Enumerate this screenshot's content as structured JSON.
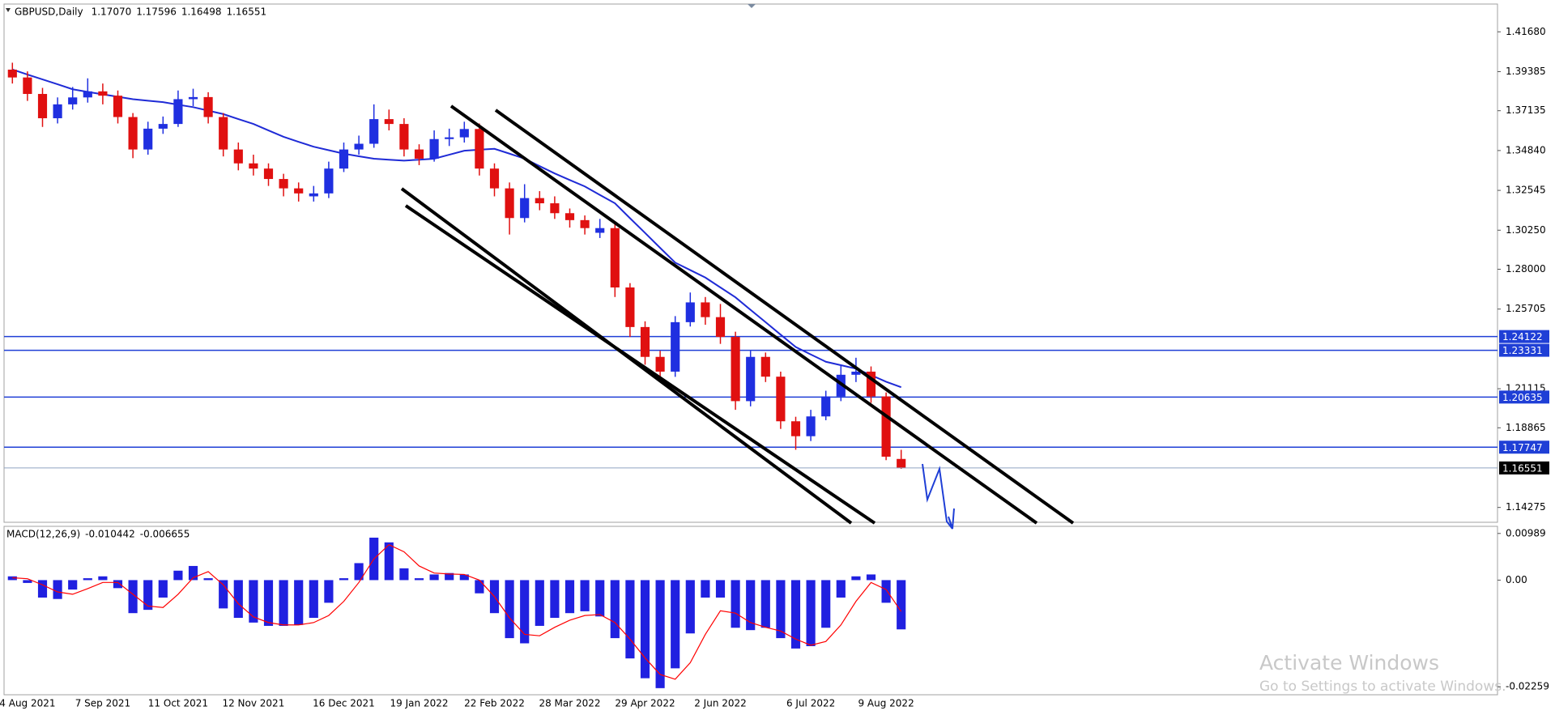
{
  "chart_data": [
    {
      "type": "candlestick",
      "title": "GBPUSD,Daily",
      "ohlc_labels": [
        "1.17070",
        "1.17596",
        "1.16498",
        "1.16551"
      ],
      "categories": [
        null,
        "4 Aug 2021",
        null,
        null,
        null,
        null,
        "7 Sep 2021",
        null,
        null,
        null,
        null,
        "11 Oct 2021",
        null,
        null,
        null,
        null,
        "12 Nov 2021",
        null,
        null,
        null,
        null,
        null,
        "16 Dec 2021",
        null,
        null,
        null,
        null,
        "19 Jan 2022",
        null,
        null,
        null,
        null,
        "22 Feb 2022",
        null,
        null,
        null,
        null,
        "28 Mar 2022",
        null,
        null,
        null,
        null,
        "29 Apr 2022",
        null,
        null,
        null,
        null,
        "2 Jun 2022",
        null,
        null,
        null,
        null,
        null,
        "6 Jul 2022",
        null,
        null,
        null,
        null,
        "9 Aug 2022",
        null
      ],
      "open": [
        1.395,
        1.3905,
        1.381,
        1.367,
        1.375,
        1.379,
        1.3825,
        1.38,
        1.3677,
        1.349,
        1.361,
        1.3637,
        1.378,
        1.3792,
        1.3677,
        1.349,
        1.341,
        1.338,
        1.332,
        1.3266,
        1.322,
        1.3237,
        1.338,
        1.349,
        1.3523,
        1.3665,
        1.3637,
        1.349,
        1.3437,
        1.355,
        1.356,
        1.3608,
        1.338,
        1.3266,
        1.3095,
        1.321,
        1.318,
        1.3123,
        1.3083,
        1.301,
        1.3037,
        1.2695,
        1.2467,
        1.2295,
        1.221,
        1.2495,
        1.2609,
        1.2524,
        1.241,
        1.204,
        1.2295,
        1.2181,
        1.1924,
        1.1838,
        1.1952,
        1.2067,
        1.2192,
        1.221,
        1.2067,
        1.1707
      ],
      "high": [
        1.399,
        1.394,
        1.3845,
        1.379,
        1.385,
        1.39,
        1.387,
        1.383,
        1.37,
        1.365,
        1.368,
        1.383,
        1.384,
        1.382,
        1.37,
        1.353,
        1.346,
        1.341,
        1.335,
        1.33,
        1.328,
        1.342,
        1.353,
        1.357,
        1.375,
        1.372,
        1.367,
        1.352,
        1.36,
        1.361,
        1.365,
        1.364,
        1.341,
        1.33,
        1.329,
        1.325,
        1.322,
        1.315,
        1.311,
        1.309,
        1.307,
        1.272,
        1.25,
        1.233,
        1.253,
        1.2666,
        1.264,
        1.26,
        1.244,
        1.233,
        1.232,
        1.221,
        1.195,
        1.199,
        1.21,
        1.225,
        1.229,
        1.224,
        1.209,
        1.17596
      ],
      "low": [
        1.387,
        1.377,
        1.362,
        1.364,
        1.372,
        1.376,
        1.375,
        1.364,
        1.344,
        1.346,
        1.358,
        1.362,
        1.374,
        1.364,
        1.345,
        1.337,
        1.334,
        1.328,
        1.322,
        1.319,
        1.319,
        1.321,
        1.336,
        1.346,
        1.35,
        1.36,
        1.345,
        1.34,
        1.342,
        1.351,
        1.353,
        1.334,
        1.322,
        1.3,
        1.307,
        1.314,
        1.309,
        1.304,
        1.3,
        1.298,
        1.264,
        1.241,
        1.225,
        1.2155,
        1.218,
        1.247,
        1.248,
        1.237,
        1.199,
        1.201,
        1.215,
        1.188,
        1.176,
        1.181,
        1.193,
        1.204,
        1.215,
        1.203,
        1.17,
        1.16498
      ],
      "close": [
        1.3905,
        1.381,
        1.367,
        1.375,
        1.379,
        1.3825,
        1.38,
        1.3677,
        1.349,
        1.361,
        1.3637,
        1.378,
        1.3792,
        1.3677,
        1.349,
        1.341,
        1.338,
        1.332,
        1.3266,
        1.3237,
        1.3237,
        1.338,
        1.349,
        1.3523,
        1.3665,
        1.3637,
        1.349,
        1.3437,
        1.355,
        1.356,
        1.3608,
        1.338,
        1.3266,
        1.3095,
        1.321,
        1.318,
        1.3123,
        1.3083,
        1.3037,
        1.3037,
        1.2695,
        1.2467,
        1.2295,
        1.221,
        1.2495,
        1.2609,
        1.2524,
        1.241,
        1.204,
        1.2295,
        1.2181,
        1.1924,
        1.1838,
        1.1952,
        1.2067,
        1.2192,
        1.221,
        1.2067,
        1.172,
        1.16551
      ],
      "up_color": "#1f2fe0",
      "down_color": "#e01010",
      "series": [
        {
          "color": "#1f2bd6",
          "values": [
            1.3951,
            1.3922,
            1.3894,
            1.3866,
            1.3837,
            1.3822,
            1.3808,
            1.3794,
            1.378,
            1.3771,
            1.3763,
            1.3748,
            1.3734,
            1.3714,
            1.3694,
            1.3665,
            1.3637,
            1.36,
            1.3563,
            1.3534,
            1.3506,
            1.3486,
            1.3466,
            1.3451,
            1.3437,
            1.3431,
            1.3426,
            1.3431,
            1.3437,
            1.346,
            1.3483,
            1.3489,
            1.3494,
            1.3466,
            1.3437,
            1.3394,
            1.3352,
            1.3314,
            1.3277,
            1.3228,
            1.318,
            1.3094,
            1.3009,
            1.2923,
            1.2838,
            1.2795,
            1.2752,
            1.2695,
            1.2638,
            1.2566,
            1.2495,
            1.2423,
            1.2352,
            1.2309,
            1.2267,
            1.2247,
            1.2227,
            1.219,
            1.2152,
            1.212
          ]
        }
      ],
      "levels": [
        1.24122,
        1.23331,
        1.20635,
        1.17747
      ],
      "level_color": "#1f3fd6",
      "ylim": [
        1.1342,
        1.4328
      ],
      "yticks": [
        {
          "value": 1.4168,
          "label": "1.41680"
        },
        1.39385,
        1.37135,
        {
          "value": 1.3484,
          "label": "1.34840"
        },
        1.32545,
        {
          "value": 1.3025,
          "label": "1.30250"
        },
        {
          "value": 1.28,
          "label": "1.28000"
        },
        1.25705,
        1.21115,
        1.18865,
        1.14275
      ]
    },
    {
      "type": "macd",
      "title": "MACD(12,26,9)",
      "series": [
        {
          "color": "#2020e0",
          "values": [
            0.0008,
            -0.0006,
            -0.0037,
            -0.004,
            -0.002,
            0.0004,
            0.0008,
            -0.0017,
            -0.007,
            -0.0063,
            -0.0037,
            0.002,
            0.003,
            0.0004,
            -0.006,
            -0.008,
            -0.009,
            -0.0097,
            -0.0097,
            -0.0095,
            -0.008,
            -0.0048,
            0.0004,
            0.0036,
            0.009,
            0.008,
            0.0025,
            0.0004,
            0.0012,
            0.0015,
            0.0012,
            -0.0028,
            -0.007,
            -0.0123,
            -0.0134,
            -0.0097,
            -0.008,
            -0.007,
            -0.0066,
            -0.0077,
            -0.0123,
            -0.0166,
            -0.0208,
            -0.0229,
            -0.0187,
            -0.0113,
            -0.0037,
            -0.0037,
            -0.0101,
            -0.0106,
            -0.0101,
            -0.0123,
            -0.0145,
            -0.014,
            -0.0101,
            -0.0037,
            0.0008,
            0.0012,
            -0.0048,
            -0.010442
          ]
        },
        {
          "color": "#ff0000",
          "values": [
            0.0005,
            0.0003,
            -0.001,
            -0.0025,
            -0.003,
            -0.0018,
            -0.0005,
            -0.0005,
            -0.003,
            -0.0055,
            -0.0058,
            -0.003,
            0.0005,
            0.0018,
            -0.001,
            -0.005,
            -0.0078,
            -0.009,
            -0.0095,
            -0.0095,
            -0.009,
            -0.0075,
            -0.0045,
            -0.0005,
            0.0045,
            0.0075,
            0.006,
            0.003,
            0.0015,
            0.0013,
            0.0012,
            0,
            -0.0035,
            -0.008,
            -0.0115,
            -0.0118,
            -0.01,
            -0.0085,
            -0.0075,
            -0.0073,
            -0.009,
            -0.0125,
            -0.0165,
            -0.02,
            -0.021,
            -0.0175,
            -0.0115,
            -0.0065,
            -0.007,
            -0.009,
            -0.01,
            -0.0108,
            -0.0125,
            -0.0138,
            -0.013,
            -0.0095,
            -0.0045,
            -0.0005,
            -0.002,
            -0.006655
          ]
        }
      ],
      "ylim": [
        -0.0243,
        0.0114
      ],
      "yticks": [
        0.00989,
        {
          "value": 0,
          "label": "0.00"
        },
        -0.02259
      ]
    }
  ],
  "watermark": {
    "title": "Activate Windows",
    "subtitle": "Go to Settings to activate Windows."
  }
}
